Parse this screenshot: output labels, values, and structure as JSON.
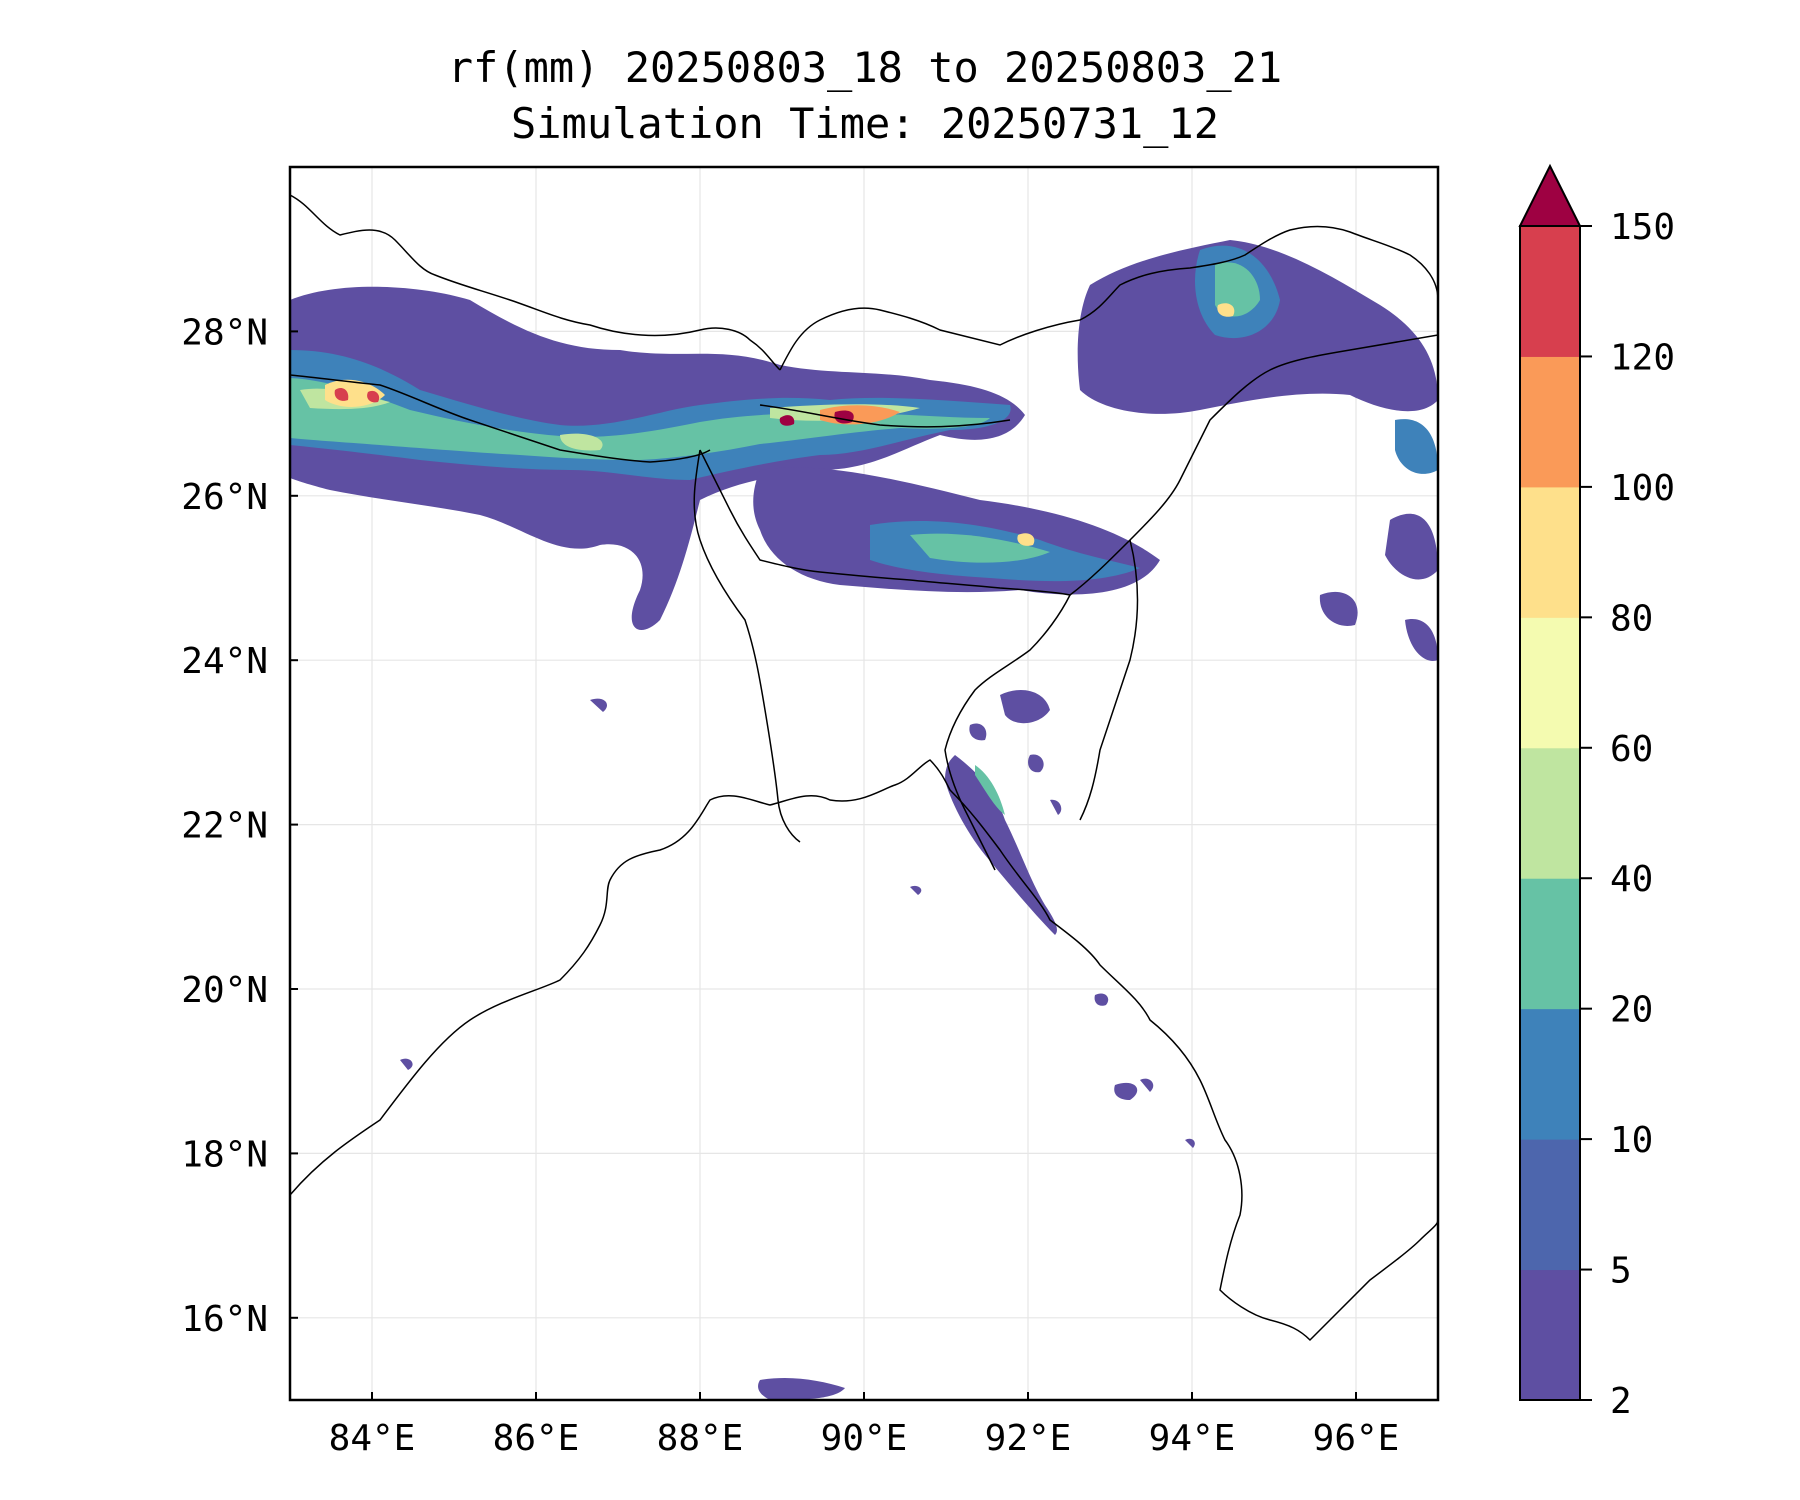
{
  "map": {
    "title_line1": "rf(mm) 20250803_18 to 20250803_21",
    "title_line2": "Simulation Time: 20250731_12",
    "lon_range": [
      83.0,
      97.0
    ],
    "lat_range": [
      15.0,
      30.0
    ],
    "lon_ticks": [
      {
        "value": 84,
        "label": "84°E"
      },
      {
        "value": 86,
        "label": "86°E"
      },
      {
        "value": 88,
        "label": "88°E"
      },
      {
        "value": 90,
        "label": "90°E"
      },
      {
        "value": 92,
        "label": "92°E"
      },
      {
        "value": 94,
        "label": "94°E"
      },
      {
        "value": 96,
        "label": "96°E"
      }
    ],
    "lat_ticks": [
      {
        "value": 16,
        "label": "16°N"
      },
      {
        "value": 18,
        "label": "18°N"
      },
      {
        "value": 20,
        "label": "20°N"
      },
      {
        "value": 22,
        "label": "22°N"
      },
      {
        "value": 24,
        "label": "24°N"
      },
      {
        "value": 26,
        "label": "26°N"
      },
      {
        "value": 28,
        "label": "28°N"
      }
    ],
    "gridlines": true
  },
  "colorbar": {
    "extend": "max",
    "extend_color": "#9e0142",
    "levels": [
      {
        "label": "2",
        "color": "#5e4fa2"
      },
      {
        "label": "5",
        "color": "#4d66ad"
      },
      {
        "label": "10",
        "color": "#3e82ba"
      },
      {
        "label": "20",
        "color": "#66c2a5"
      },
      {
        "label": "40",
        "color": "#bfe5a0"
      },
      {
        "label": "60",
        "color": "#f4fbb0"
      },
      {
        "label": "80",
        "color": "#fee08b"
      },
      {
        "label": "100",
        "color": "#fa9a58"
      },
      {
        "label": "120",
        "color": "#d73f4e"
      },
      {
        "label": "150",
        "color": ""
      }
    ]
  }
}
